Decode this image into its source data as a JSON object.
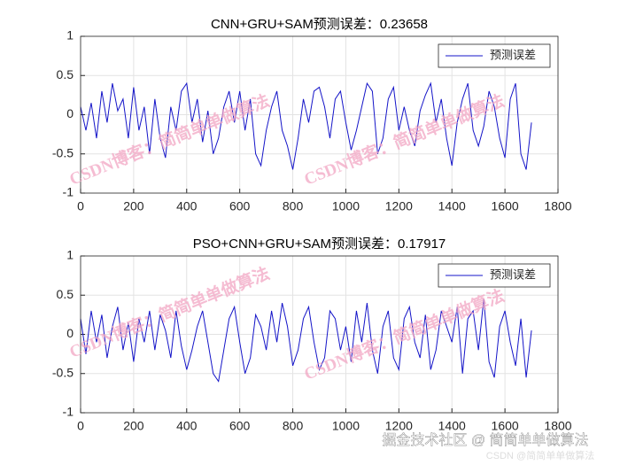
{
  "chart_data": [
    {
      "type": "line",
      "title": "CNN+GRU+SAM预测误差：0.23658",
      "x": [
        0,
        20,
        40,
        60,
        80,
        100,
        120,
        140,
        160,
        180,
        200,
        220,
        240,
        260,
        280,
        300,
        320,
        340,
        360,
        380,
        400,
        420,
        440,
        460,
        480,
        500,
        520,
        540,
        560,
        580,
        600,
        620,
        640,
        660,
        680,
        700,
        720,
        740,
        760,
        780,
        800,
        820,
        840,
        860,
        880,
        900,
        920,
        940,
        960,
        980,
        1000,
        1020,
        1040,
        1060,
        1080,
        1100,
        1120,
        1140,
        1160,
        1180,
        1200,
        1220,
        1240,
        1260,
        1280,
        1300,
        1320,
        1340,
        1360,
        1380,
        1400,
        1420,
        1440,
        1460,
        1480,
        1500,
        1520,
        1540,
        1560,
        1580,
        1600,
        1620,
        1640,
        1660,
        1680,
        1700
      ],
      "series": [
        {
          "name": "预测误差",
          "color": "#1414c8",
          "values": [
            0.1,
            -0.2,
            0.15,
            -0.3,
            0.3,
            -0.1,
            0.4,
            0.05,
            0.2,
            -0.3,
            0.35,
            -0.2,
            0.1,
            -0.5,
            0.2,
            -0.3,
            -0.55,
            0.1,
            -0.2,
            0.3,
            0.4,
            -0.1,
            0.2,
            -0.35,
            0.05,
            -0.5,
            -0.3,
            0.1,
            0.3,
            -0.1,
            0.3,
            -0.2,
            0.2,
            -0.5,
            -0.65,
            -0.2,
            0.1,
            0.3,
            -0.2,
            -0.4,
            -0.7,
            -0.3,
            0.2,
            -0.1,
            0.3,
            0.35,
            0.1,
            -0.3,
            0.2,
            0.3,
            -0.1,
            -0.45,
            -0.2,
            0.1,
            0.4,
            0.3,
            -0.5,
            -0.3,
            0.2,
            0.35,
            -0.2,
            0.1,
            -0.2,
            -0.4,
            0.05,
            0.25,
            0.4,
            -0.1,
            0.2,
            -0.3,
            -0.65,
            -0.1,
            0.2,
            0.4,
            -0.2,
            -0.4,
            -0.15,
            0.3,
            0.1,
            -0.3,
            -0.55,
            0.2,
            0.4,
            -0.5,
            -0.7,
            -0.1
          ]
        }
      ],
      "xlim": [
        0,
        1800
      ],
      "xticks": [
        0,
        200,
        400,
        600,
        800,
        1000,
        1200,
        1400,
        1600,
        1800
      ],
      "ylim": [
        -1,
        1
      ],
      "yticks": [
        -1,
        -0.5,
        0,
        0.5,
        1
      ],
      "grid": true,
      "legend": "upper right"
    },
    {
      "type": "line",
      "title": "PSO+CNN+GRU+SAM预测误差：0.17917",
      "x": [
        0,
        20,
        40,
        60,
        80,
        100,
        120,
        140,
        160,
        180,
        200,
        220,
        240,
        260,
        280,
        300,
        320,
        340,
        360,
        380,
        400,
        420,
        440,
        460,
        480,
        500,
        520,
        540,
        560,
        580,
        600,
        620,
        640,
        660,
        680,
        700,
        720,
        740,
        760,
        780,
        800,
        820,
        840,
        860,
        880,
        900,
        920,
        940,
        960,
        980,
        1000,
        1020,
        1040,
        1060,
        1080,
        1100,
        1120,
        1140,
        1160,
        1180,
        1200,
        1220,
        1240,
        1260,
        1280,
        1300,
        1320,
        1340,
        1360,
        1380,
        1400,
        1420,
        1440,
        1460,
        1480,
        1500,
        1520,
        1540,
        1560,
        1580,
        1600,
        1620,
        1640,
        1660,
        1680,
        1700
      ],
      "series": [
        {
          "name": "预测误差",
          "color": "#1414c8",
          "values": [
            0.2,
            -0.25,
            0.3,
            -0.1,
            0.25,
            -0.3,
            0.1,
            0.35,
            -0.2,
            0.15,
            -0.35,
            0.2,
            -0.1,
            0.3,
            -0.2,
            0.25,
            0.05,
            -0.3,
            0.3,
            -0.15,
            -0.45,
            -0.2,
            0.1,
            0.3,
            -0.1,
            -0.5,
            -0.6,
            -0.2,
            0.2,
            0.35,
            -0.1,
            -0.5,
            -0.3,
            0.25,
            0.1,
            -0.2,
            0.3,
            -0.1,
            0.4,
            0.1,
            -0.4,
            -0.2,
            0.2,
            0.35,
            -0.1,
            -0.45,
            -0.3,
            0.3,
            0.2,
            -0.2,
            0.1,
            -0.35,
            0.3,
            -0.1,
            0.4,
            -0.2,
            -0.5,
            0.1,
            0.3,
            -0.3,
            -0.45,
            0.2,
            0.35,
            -0.1,
            -0.3,
            0.25,
            -0.45,
            -0.2,
            0.3,
            0.1,
            -0.1,
            0.35,
            -0.5,
            0.2,
            0.3,
            -0.2,
            0.45,
            -0.35,
            -0.55,
            0.1,
            0.3,
            -0.1,
            -0.4,
            0.2,
            -0.55,
            0.05
          ]
        }
      ],
      "xlim": [
        0,
        1800
      ],
      "xticks": [
        0,
        200,
        400,
        600,
        800,
        1000,
        1200,
        1400,
        1600,
        1800
      ],
      "ylim": [
        -1,
        1
      ],
      "yticks": [
        -1,
        -0.5,
        0,
        0.5,
        1
      ],
      "grid": true,
      "legend": "upper right"
    }
  ],
  "watermarks": [
    "CSDN博客：简简单单做算法",
    "CSDN博客：简简单单做算法",
    "CSDN博客：简简单单做算法",
    "CSDN博客：简简单单做算法"
  ],
  "footer": {
    "juejin": "掘金技术社区 @ 简简单单做算法",
    "csdn": "CSDN @简简单单做算法"
  }
}
